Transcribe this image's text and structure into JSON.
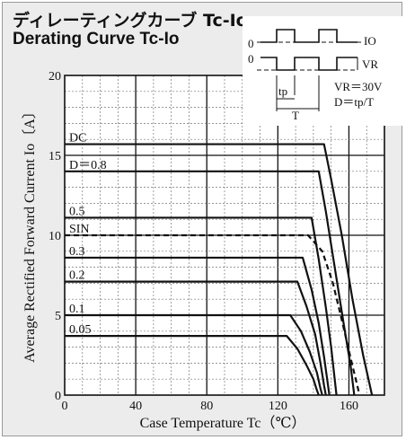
{
  "header": {
    "title_jp": "ディレーティングカーブ Tc-Io",
    "title_en": "Derating Curve Tc-Io"
  },
  "inset": {
    "label_zero_top": "0",
    "label_zero_bottom": "0",
    "label_io": "IO",
    "label_vr": "VR",
    "label_tp": "tp",
    "label_T": "T",
    "label_vr_eq": "VR＝30V",
    "label_d_eq": "D＝tp/T"
  },
  "chart_data": {
    "type": "line",
    "xlabel": "Case Temperature   Tc（℃）",
    "ylabel": "Average Rectified Forward Current  Io〔A〕",
    "xlim": [
      0,
      180
    ],
    "ylim": [
      0,
      20
    ],
    "x_ticks": [
      0,
      40,
      80,
      120,
      160
    ],
    "y_ticks": [
      0,
      5,
      10,
      15,
      20
    ],
    "x_tick_labels": [
      "0",
      "40",
      "80",
      "120",
      "160"
    ],
    "y_tick_labels": [
      "0",
      "5",
      "10",
      "15",
      "20"
    ],
    "grid": true,
    "series": [
      {
        "name": "DC",
        "dashed": false,
        "points": [
          [
            0,
            15.7
          ],
          [
            146,
            15.7
          ],
          [
            150,
            13.5
          ],
          [
            156,
            10.0
          ],
          [
            162,
            6.0
          ],
          [
            168,
            2.5
          ],
          [
            173,
            0
          ]
        ]
      },
      {
        "name": "D＝0.8",
        "dashed": false,
        "points": [
          [
            0,
            14.0
          ],
          [
            143,
            14.0
          ],
          [
            147,
            11.5
          ],
          [
            152,
            8.0
          ],
          [
            157,
            4.5
          ],
          [
            161,
            1.8
          ],
          [
            163,
            0
          ]
        ]
      },
      {
        "name": "0.5",
        "dashed": false,
        "points": [
          [
            0,
            11.1
          ],
          [
            139,
            11.1
          ],
          [
            143,
            8.5
          ],
          [
            147,
            5.5
          ],
          [
            150,
            3.0
          ],
          [
            152,
            1.0
          ],
          [
            153,
            0
          ]
        ]
      },
      {
        "name": "SIN",
        "dashed": true,
        "points": [
          [
            0,
            10.0
          ],
          [
            137,
            10.0
          ],
          [
            145,
            9.0
          ],
          [
            151,
            7.0
          ],
          [
            156,
            4.7
          ],
          [
            161,
            2.3
          ],
          [
            166,
            0
          ]
        ]
      },
      {
        "name": "0.3",
        "dashed": false,
        "points": [
          [
            0,
            8.6
          ],
          [
            134,
            8.6
          ],
          [
            139,
            6.6
          ],
          [
            143,
            4.5
          ],
          [
            146,
            2.4
          ],
          [
            148,
            0.8
          ],
          [
            149,
            0
          ]
        ]
      },
      {
        "name": "0.2",
        "dashed": false,
        "points": [
          [
            0,
            7.1
          ],
          [
            131,
            7.1
          ],
          [
            136,
            5.6
          ],
          [
            141,
            3.8
          ],
          [
            144,
            2.0
          ],
          [
            146,
            0.6
          ],
          [
            147,
            0
          ]
        ]
      },
      {
        "name": "0.1",
        "dashed": false,
        "points": [
          [
            0,
            5.0
          ],
          [
            127,
            5.0
          ],
          [
            133,
            4.0
          ],
          [
            138,
            2.7
          ],
          [
            142,
            1.4
          ],
          [
            144,
            0.4
          ],
          [
            145,
            0
          ]
        ]
      },
      {
        "name": "0.05",
        "dashed": false,
        "points": [
          [
            0,
            3.7
          ],
          [
            125,
            3.7
          ],
          [
            131,
            2.9
          ],
          [
            136,
            1.9
          ],
          [
            140,
            1.0
          ],
          [
            142,
            0.3
          ],
          [
            143,
            0
          ]
        ]
      }
    ],
    "series_label_x": 1
  }
}
